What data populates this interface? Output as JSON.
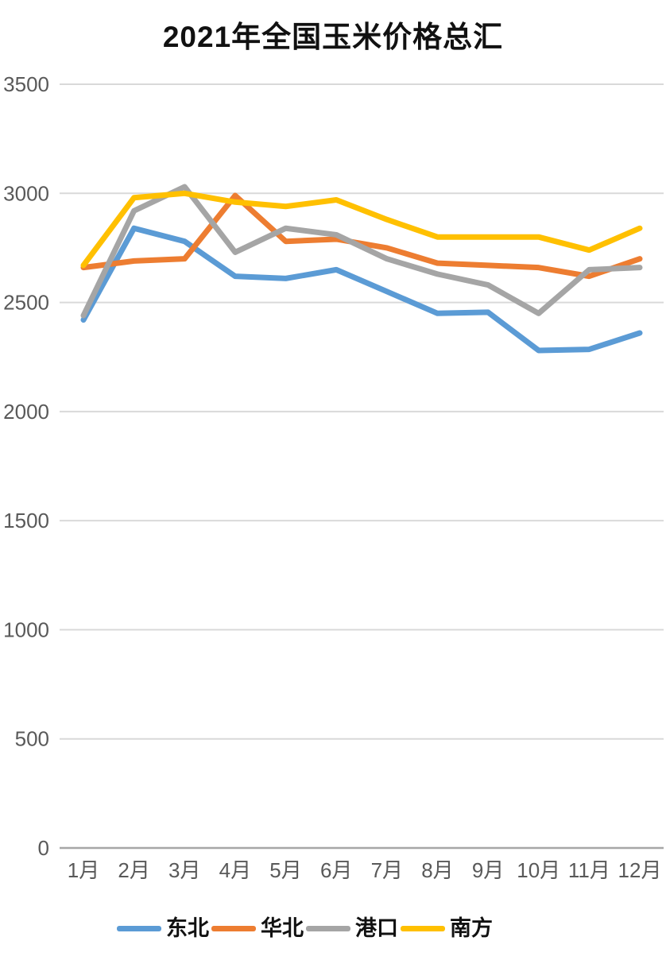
{
  "chart_data": {
    "type": "line",
    "title": "2021年全国玉米价格总汇",
    "xlabel": "",
    "ylabel": "",
    "categories": [
      "1月",
      "2月",
      "3月",
      "4月",
      "5月",
      "6月",
      "7月",
      "8月",
      "9月",
      "10月",
      "11月",
      "12月"
    ],
    "series": [
      {
        "key": "northeast",
        "name": "东北",
        "color": "#5B9BD5",
        "values": [
          2420,
          2840,
          2780,
          2620,
          2610,
          2650,
          2550,
          2450,
          2455,
          2280,
          2285,
          2360
        ]
      },
      {
        "key": "north-china",
        "name": "华北",
        "color": "#ED7D31",
        "values": [
          2660,
          2690,
          2700,
          2990,
          2780,
          2790,
          2750,
          2680,
          2670,
          2660,
          2620,
          2700
        ]
      },
      {
        "key": "port",
        "name": "港口",
        "color": "#A5A5A5",
        "values": [
          2440,
          2920,
          3030,
          2730,
          2840,
          2810,
          2700,
          2630,
          2580,
          2450,
          2650,
          2660
        ]
      },
      {
        "key": "south",
        "name": "南方",
        "color": "#FFC000",
        "values": [
          2670,
          2980,
          3000,
          2960,
          2940,
          2970,
          2880,
          2800,
          2800,
          2800,
          2740,
          2840
        ]
      }
    ],
    "y_ticks": [
      0,
      500,
      1000,
      1500,
      2000,
      2500,
      3000,
      3500
    ],
    "ylim": [
      0,
      3500
    ],
    "grid": "horizontal",
    "legend_position": "bottom",
    "colors": {
      "gridline": "#d9d9d9",
      "axis_line": "#a6a6a6",
      "tick_label": "#595959",
      "title_text": "#111111",
      "background": "#ffffff"
    }
  }
}
